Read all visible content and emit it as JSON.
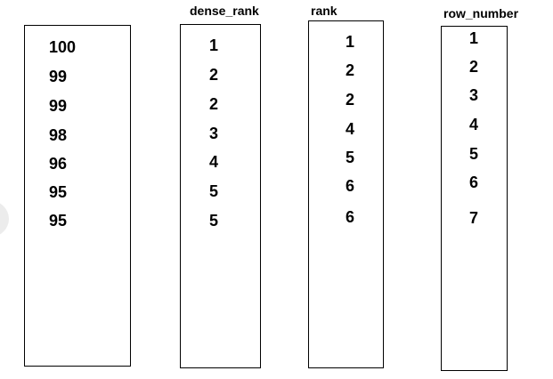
{
  "columns": {
    "scores": {
      "title": "",
      "values": [
        "100",
        "99",
        "99",
        "98",
        "96",
        "95",
        "95"
      ]
    },
    "dense_rank": {
      "title": "dense_rank",
      "values": [
        "1",
        "2",
        "2",
        "3",
        "4",
        "5",
        "5"
      ]
    },
    "rank": {
      "title": "rank",
      "values": [
        "1",
        "2",
        "2",
        "4",
        "5",
        "6",
        "6"
      ]
    },
    "row_number": {
      "title": "row_number",
      "values": [
        "1",
        "2",
        "3",
        "4",
        "5",
        "6",
        "7"
      ]
    }
  },
  "colors": {
    "border": "#000000",
    "text": "#000000",
    "background": "#ffffff",
    "edge_circle": "#ececec"
  }
}
